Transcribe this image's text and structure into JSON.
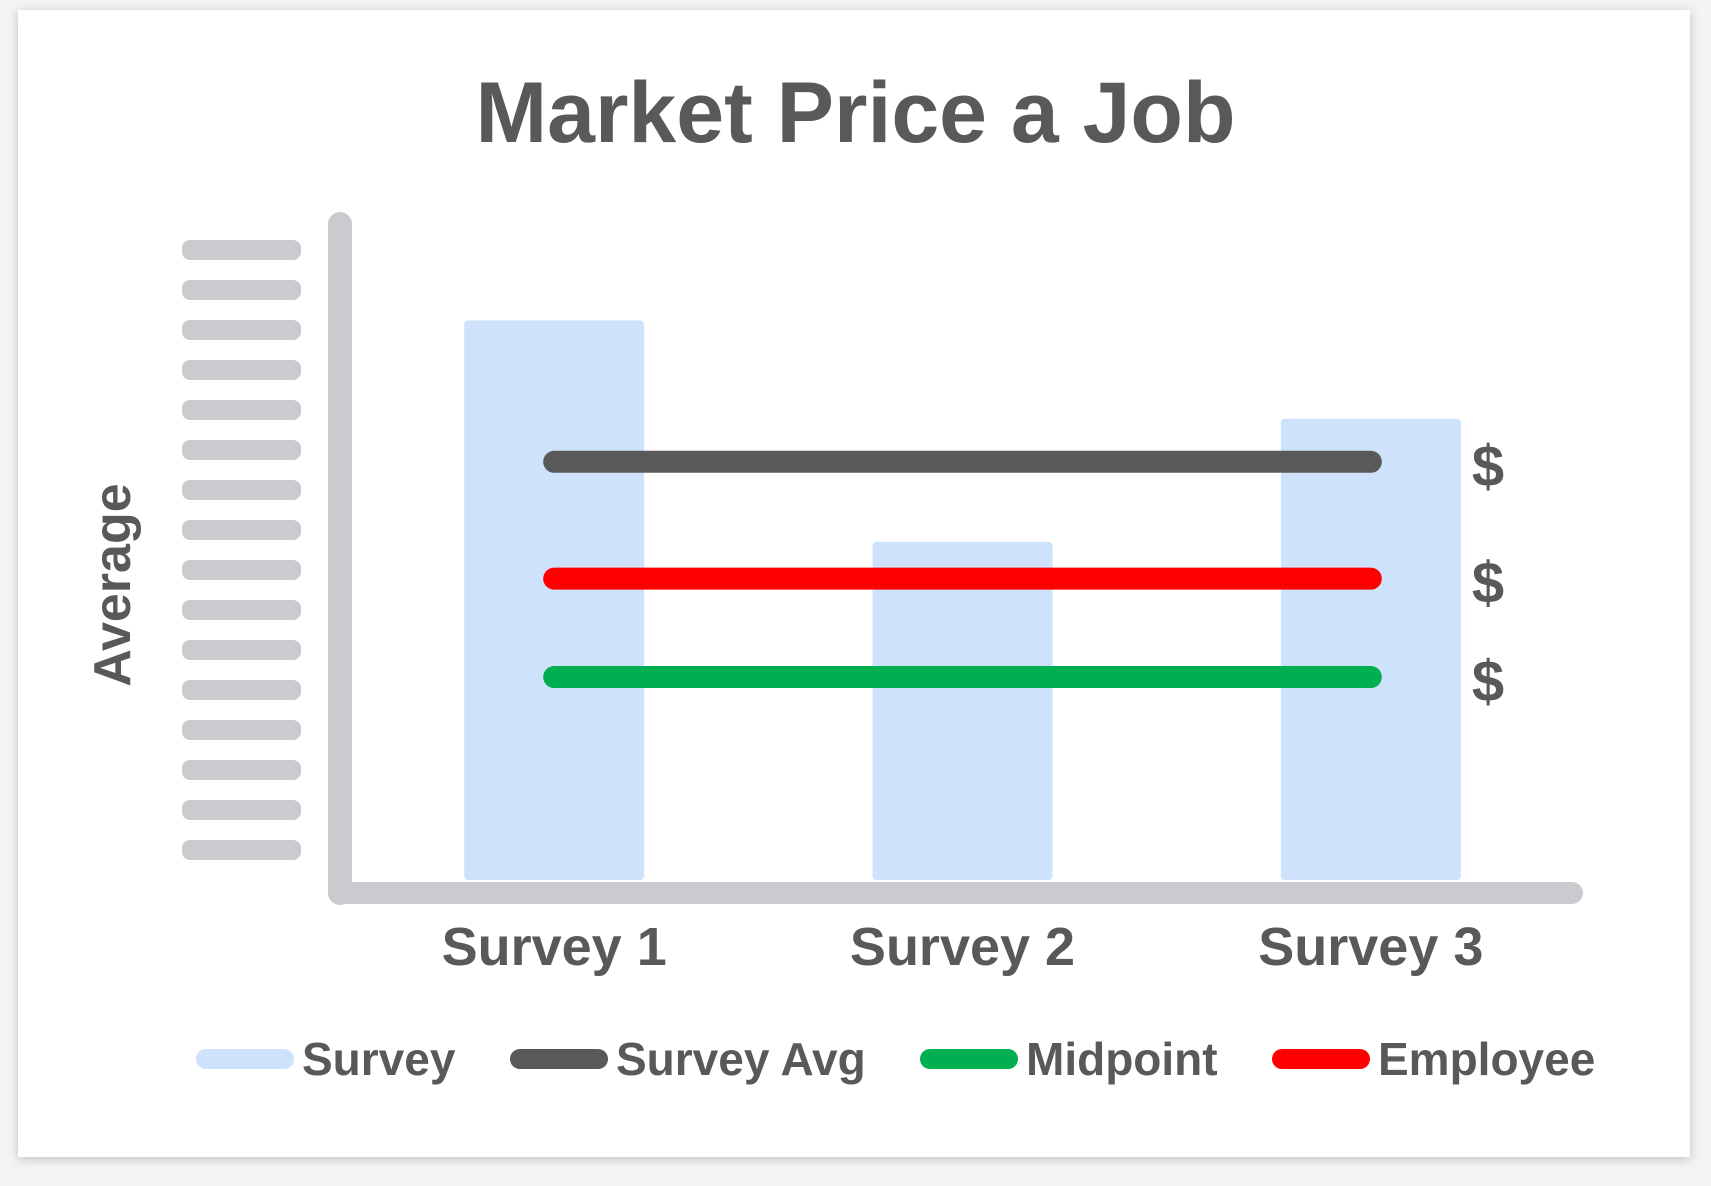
{
  "title": "Market Price a Job",
  "colors": {
    "survey": "#cfe2fb",
    "survey_avg": "#595959",
    "midpoint": "#00b050",
    "employee": "#ff0000",
    "axis": "#c9cbce",
    "text": "#595959"
  },
  "chart_data": {
    "type": "bar",
    "title": "Market Price a Job",
    "ylabel": "Average",
    "xlabel": "",
    "categories": [
      "Survey 1",
      "Survey 2",
      "Survey 3"
    ],
    "ylim": [
      0,
      100
    ],
    "y_tick_labels_redacted": true,
    "series": [
      {
        "name": "Survey",
        "type": "bar",
        "values": [
          91,
          55,
          75
        ]
      },
      {
        "name": "Survey Avg",
        "type": "line",
        "values": [
          68,
          68,
          68
        ],
        "label": "$"
      },
      {
        "name": "Midpoint",
        "type": "line",
        "values": [
          33,
          33,
          33
        ],
        "label": "$"
      },
      {
        "name": "Employee",
        "type": "line",
        "values": [
          49,
          49,
          49
        ],
        "label": "$"
      }
    ],
    "legend": [
      "Survey",
      "Survey Avg",
      "Midpoint",
      "Employee"
    ],
    "legend_position": "bottom",
    "grid": false
  }
}
